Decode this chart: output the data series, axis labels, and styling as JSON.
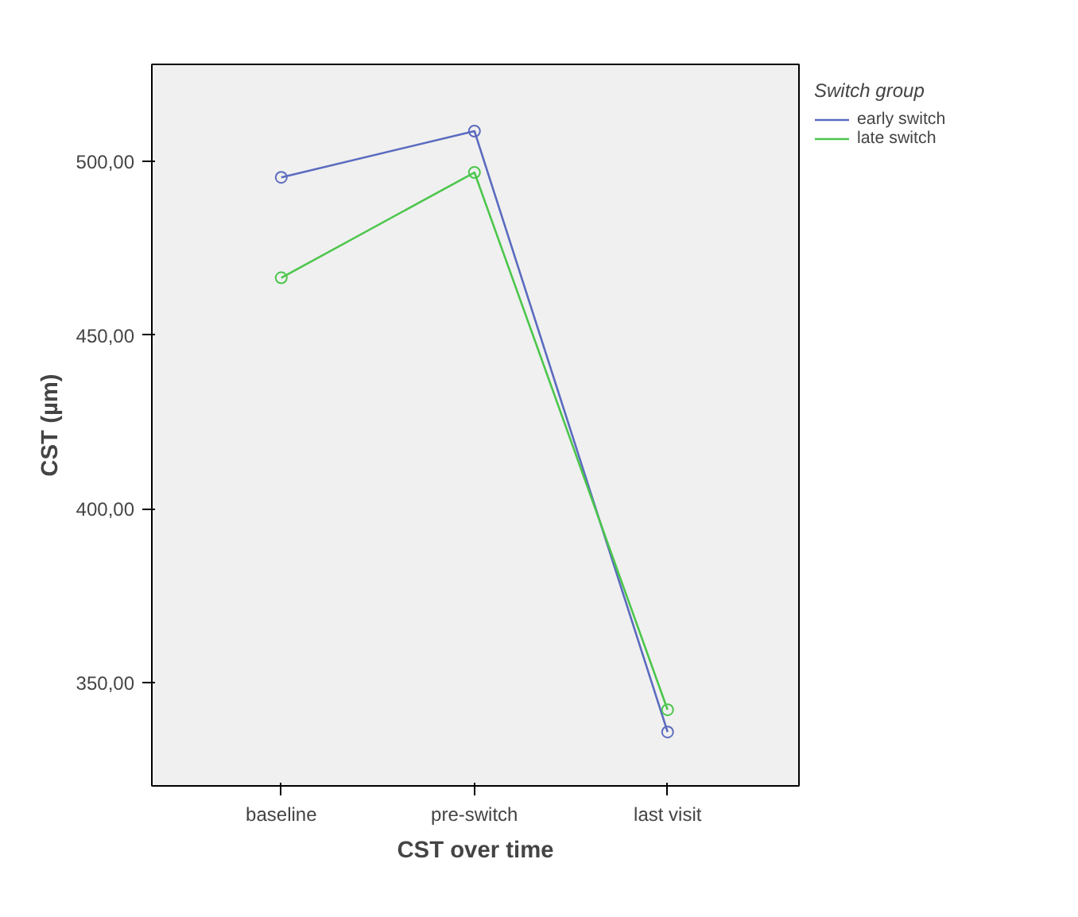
{
  "chart_data": {
    "type": "line",
    "xlabel": "CST over time",
    "ylabel": "CST (µm)",
    "legend_title": "Switch group",
    "categories": [
      "baseline",
      "pre-switch",
      "last visit"
    ],
    "series": [
      {
        "name": "early switch",
        "color": "#5b6bbf",
        "values": [
          495.4,
          508.7,
          335.8
        ]
      },
      {
        "name": "late switch",
        "color": "#4cc64c",
        "values": [
          466.5,
          496.8,
          342.2
        ]
      }
    ],
    "ylim": [
      320.3,
      527.9
    ],
    "yticks": [
      {
        "value": 350,
        "label": "350,00"
      },
      {
        "value": 400,
        "label": "400,00"
      },
      {
        "value": 450,
        "label": "450,00"
      },
      {
        "value": 500,
        "label": "500,00"
      }
    ],
    "grid": false,
    "legend": "top right",
    "marker": "circle",
    "line_style": "solid"
  }
}
